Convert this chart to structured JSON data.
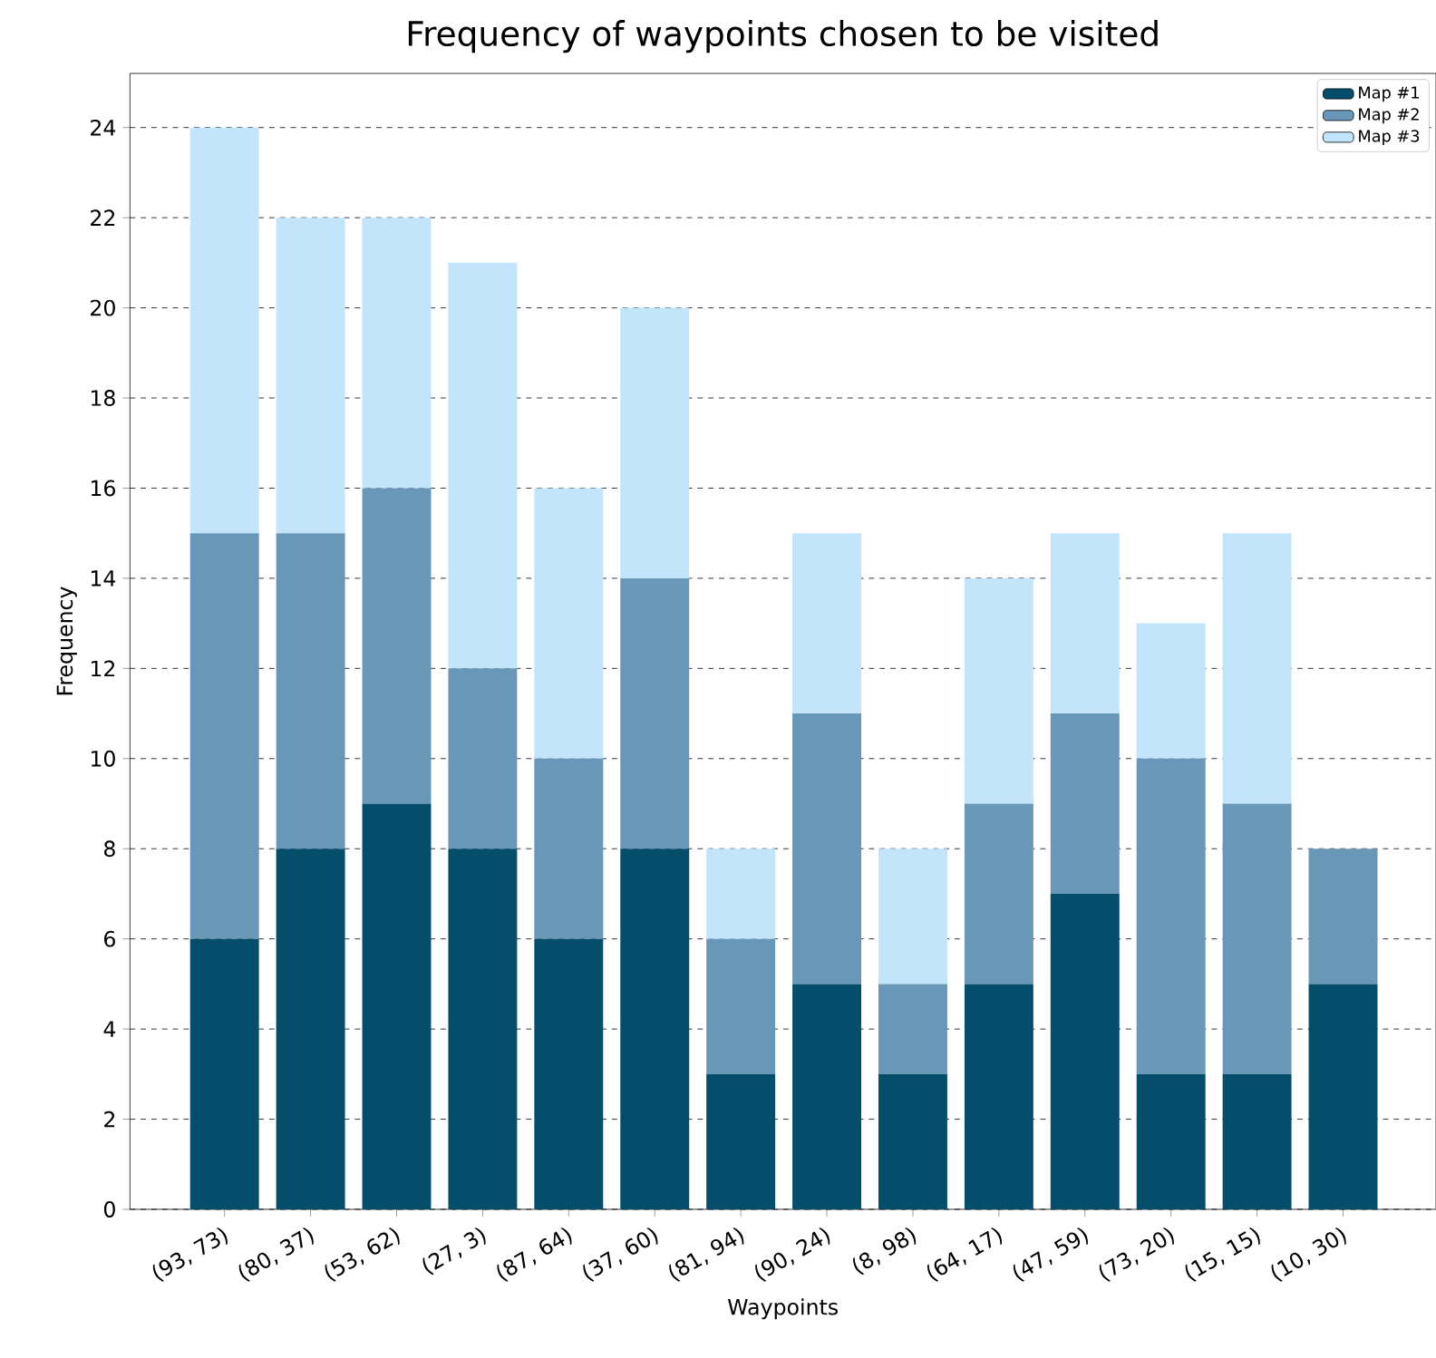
{
  "chart_data": {
    "type": "bar",
    "title": "Frequency of waypoints chosen to be visited",
    "xlabel": "Waypoints",
    "ylabel": "Frequency",
    "categories": [
      "(93, 73)",
      "(80, 37)",
      "(53, 62)",
      "(27, 3)",
      "(87, 64)",
      "(37, 60)",
      "(81, 94)",
      "(90, 24)",
      "(8, 98)",
      "(64, 17)",
      "(47, 59)",
      "(73, 20)",
      "(15, 15)",
      "(10, 30)"
    ],
    "stacked": true,
    "series": [
      {
        "name": "Map #1",
        "color": "#044e6c",
        "values": [
          6,
          8,
          9,
          8,
          6,
          8,
          3,
          5,
          3,
          5,
          7,
          3,
          3,
          5
        ]
      },
      {
        "name": "Map #2",
        "color": "#6897b7",
        "values": [
          9,
          7,
          7,
          4,
          4,
          6,
          3,
          6,
          2,
          4,
          4,
          7,
          6,
          3
        ]
      },
      {
        "name": "Map #3",
        "color": "#c2e5fb",
        "values": [
          9,
          7,
          6,
          9,
          6,
          6,
          2,
          4,
          3,
          5,
          4,
          3,
          6,
          0
        ]
      }
    ],
    "ylim": [
      0,
      25.2
    ],
    "yticks": [
      0,
      2,
      4,
      6,
      8,
      10,
      12,
      14,
      16,
      18,
      20,
      22,
      24
    ],
    "grid": "y",
    "legend": "top right"
  }
}
